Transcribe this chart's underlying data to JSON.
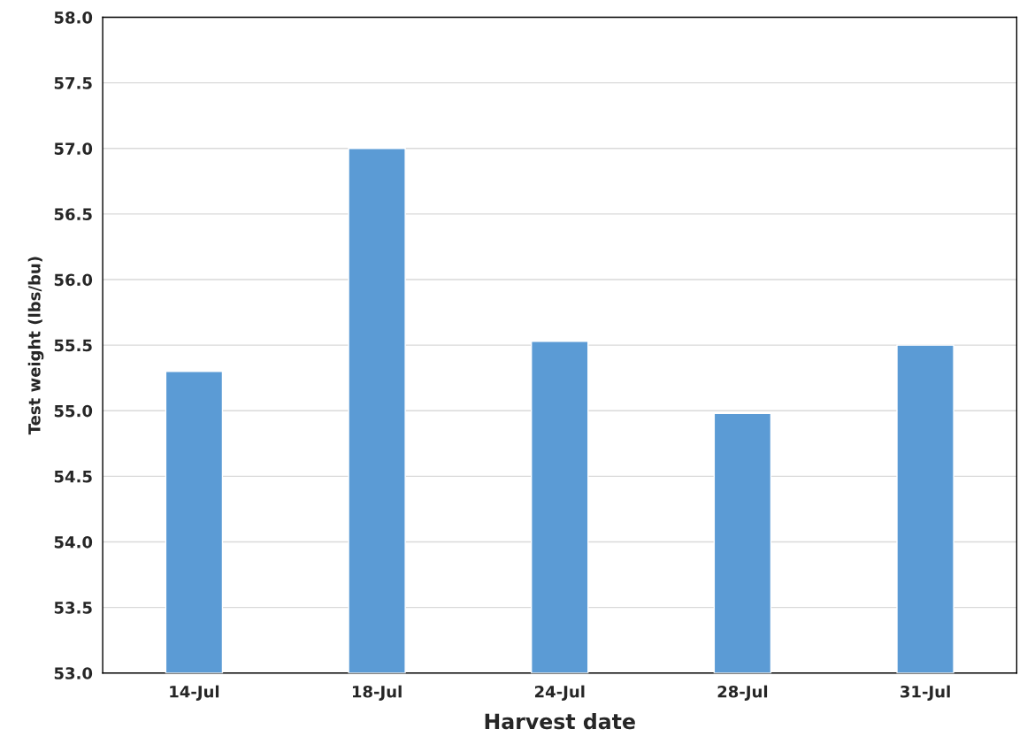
{
  "chart_data": {
    "type": "bar",
    "xlabel": "Harvest date",
    "ylabel": "Test weight (lbs/bu)",
    "categories": [
      "14-Jul",
      "18-Jul",
      "24-Jul",
      "28-Jul",
      "31-Jul"
    ],
    "values": [
      55.3,
      57.0,
      55.53,
      54.98,
      55.5
    ],
    "color": "#5b9bd5",
    "ylim": [
      53.0,
      58.0
    ],
    "yticks": [
      {
        "value": 53.0,
        "label": "53.0"
      },
      {
        "value": 53.5,
        "label": "53.5"
      },
      {
        "value": 54.0,
        "label": "54.0"
      },
      {
        "value": 54.5,
        "label": "54.5"
      },
      {
        "value": 55.0,
        "label": "55.0"
      },
      {
        "value": 55.5,
        "label": "55.5"
      },
      {
        "value": 56.0,
        "label": "56.0"
      },
      {
        "value": 56.5,
        "label": "56.5"
      },
      {
        "value": 57.0,
        "label": "57.0"
      },
      {
        "value": 57.5,
        "label": "57.5"
      },
      {
        "value": 58.0,
        "label": "58.0"
      }
    ],
    "grid": "y"
  }
}
